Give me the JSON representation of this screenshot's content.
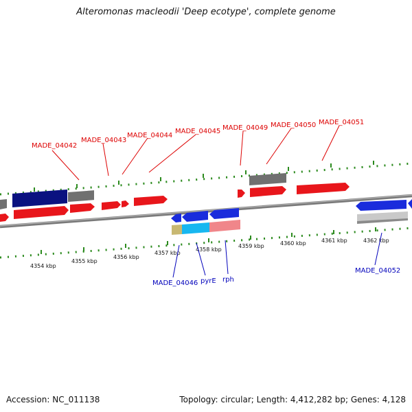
{
  "title": "Alteromonas macleodii 'Deep ecotype', complete genome",
  "footer": {
    "accession": "Accession: NC_011138",
    "summary": "Topology: circular; Length: 4,412,282 bp; Genes: 4,128"
  },
  "colors": {
    "forward_gene": "#e8161b",
    "reverse_gene": "#1a2cdc",
    "forward_label": "#dd0000",
    "reverse_label": "#0000bb",
    "navy_gene": "#0a1280",
    "grey_gene": "#707070",
    "light_grey_gene": "#c9c9c9",
    "cyan_gene": "#17b7f0",
    "pink_gene": "#f0868a",
    "olive_gene": "#c8b872",
    "backbone": "#7a7a7a",
    "tick": "#2b8a1d"
  },
  "scale_ticks": [
    "4354 kbp",
    "4355 kbp",
    "4356 kbp",
    "4357 kbp",
    "4358 kbp",
    "4359 kbp",
    "4360 kbp",
    "4361 kbp",
    "4362 kbp"
  ],
  "forward_labels": [
    "MADE_04042",
    "MADE_04043",
    "MADE_04044",
    "MADE_04045",
    "MADE_04049",
    "MADE_04050",
    "MADE_04051"
  ],
  "reverse_labels": [
    "MADE_04046",
    "pyrE",
    "rph",
    "MADE_04052"
  ]
}
